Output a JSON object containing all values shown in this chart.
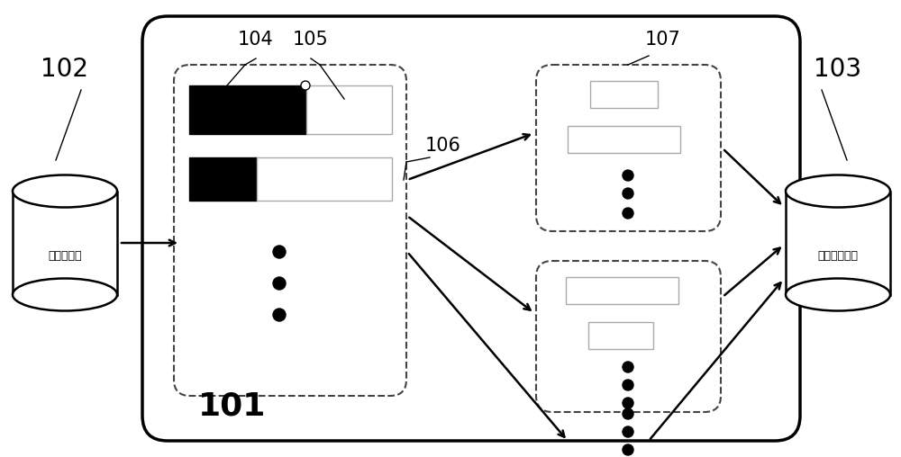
{
  "bg_color": "#ffffff",
  "label_102": "102",
  "label_103": "103",
  "label_101": "101",
  "label_104": "104",
  "label_105": "105",
  "label_106": "106",
  "label_107": "107",
  "text_src": "源端数据库",
  "text_dst": "待同步数据库",
  "dot_color": "#000000",
  "black_fill": "#000000"
}
